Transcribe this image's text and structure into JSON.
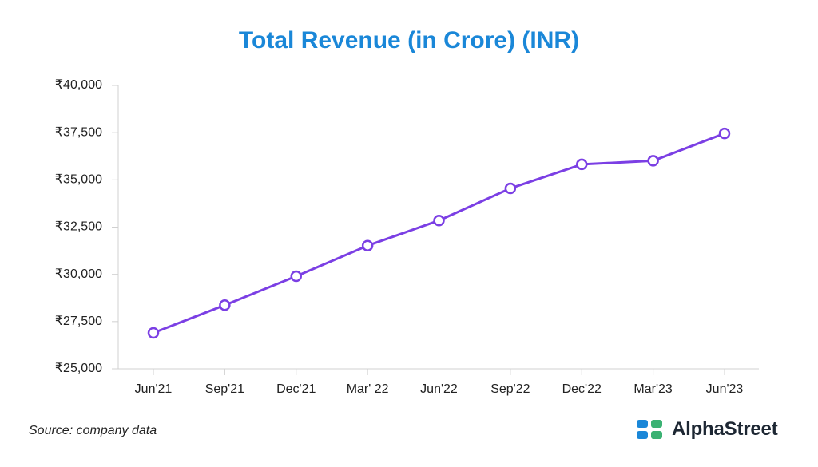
{
  "chart_data": {
    "type": "line",
    "title": "Total Revenue (in Crore) (INR)",
    "categories": [
      "Jun'21",
      "Sep'21",
      "Dec'21",
      "Mar' 22",
      "Jun'22",
      "Sep'22",
      "Dec'22",
      "Mar'23",
      "Jun'23"
    ],
    "series": [
      {
        "name": "Total Revenue",
        "values": [
          26900,
          28370,
          29900,
          31520,
          32850,
          34550,
          35820,
          36010,
          37460
        ]
      }
    ],
    "xlabel": "",
    "ylabel": "",
    "ylim": [
      25000,
      40000
    ],
    "yticks": [
      25000,
      27500,
      30000,
      32500,
      35000,
      37500,
      40000
    ],
    "ytick_labels": [
      "₹25,000",
      "₹27,500",
      "₹30,000",
      "₹32,500",
      "₹35,000",
      "₹37,500",
      "₹40,000"
    ],
    "grid": false,
    "legend": "none"
  },
  "footer": {
    "source": "Source: company data",
    "brand": "AlphaStreet"
  },
  "colors": {
    "title": "#1a87d8",
    "line": "#7b3fe4",
    "axis": "#d0d0d0",
    "brand_blue": "#1a87d8",
    "brand_green": "#3bb273"
  },
  "icons": {
    "brand_logo": "alphastreet-logo-icon"
  }
}
